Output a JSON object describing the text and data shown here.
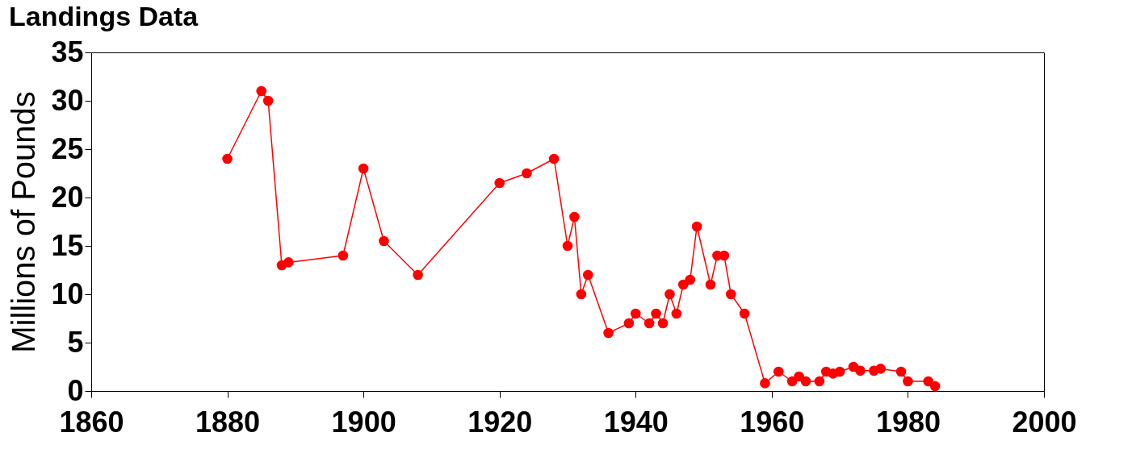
{
  "chart_data": {
    "type": "line",
    "title": "Landings Data",
    "ylabel": "Millions of Pounds",
    "x": [
      1880,
      1885,
      1886,
      1888,
      1889,
      1897,
      1900,
      1903,
      1908,
      1920,
      1924,
      1928,
      1930,
      1931,
      1932,
      1933,
      1936,
      1939,
      1940,
      1942,
      1943,
      1944,
      1945,
      1946,
      1947,
      1948,
      1949,
      1951,
      1952,
      1953,
      1954,
      1956,
      1959,
      1961,
      1963,
      1964,
      1965,
      1967,
      1968,
      1969,
      1970,
      1972,
      1973,
      1975,
      1976,
      1979,
      1980,
      1983,
      1984
    ],
    "series": [
      {
        "color": "#ff0000",
        "values": [
          24,
          31,
          30,
          13,
          13.3,
          14,
          23,
          15.5,
          12,
          21.5,
          22.5,
          24,
          15,
          18,
          10,
          12,
          6,
          7,
          8,
          7,
          8,
          7,
          10,
          8,
          11,
          11.5,
          17,
          11,
          14,
          14,
          10,
          8,
          0.8,
          2,
          1,
          1.5,
          1,
          1,
          2,
          1.8,
          2,
          2.5,
          2.1,
          2.1,
          2.3,
          2,
          1,
          1,
          0.5
        ]
      }
    ],
    "xlim": [
      1860,
      2000
    ],
    "xticks": [
      1860,
      1880,
      1900,
      1920,
      1940,
      1960,
      1980,
      2000
    ],
    "ylim": [
      0,
      35
    ],
    "yticks": [
      0,
      5,
      10,
      15,
      20,
      25,
      30,
      35
    ],
    "grid": false,
    "marker": "circle",
    "line_style": "solid"
  }
}
